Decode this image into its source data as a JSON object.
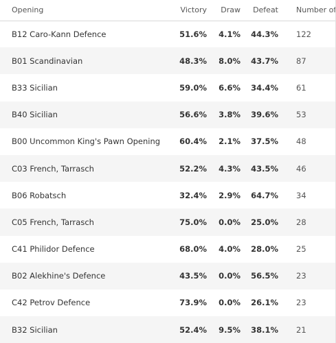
{
  "table": {
    "headers": {
      "opening": "Opening",
      "victory": "Victory",
      "draw": "Draw",
      "defeat": "Defeat",
      "number": "Number of"
    },
    "rows": [
      {
        "opening": "B12 Caro-Kann Defence",
        "victory": "51.6%",
        "draw": "4.1%",
        "defeat": "44.3%",
        "number": "122"
      },
      {
        "opening": "B01 Scandinavian",
        "victory": "48.3%",
        "draw": "8.0%",
        "defeat": "43.7%",
        "number": "87"
      },
      {
        "opening": "B33 Sicilian",
        "victory": "59.0%",
        "draw": "6.6%",
        "defeat": "34.4%",
        "number": "61"
      },
      {
        "opening": "B40 Sicilian",
        "victory": "56.6%",
        "draw": "3.8%",
        "defeat": "39.6%",
        "number": "53"
      },
      {
        "opening": "B00 Uncommon King's Pawn Opening",
        "victory": "60.4%",
        "draw": "2.1%",
        "defeat": "37.5%",
        "number": "48"
      },
      {
        "opening": "C03 French, Tarrasch",
        "victory": "52.2%",
        "draw": "4.3%",
        "defeat": "43.5%",
        "number": "46"
      },
      {
        "opening": "B06 Robatsch",
        "victory": "32.4%",
        "draw": "2.9%",
        "defeat": "64.7%",
        "number": "34"
      },
      {
        "opening": "C05 French, Tarrasch",
        "victory": "75.0%",
        "draw": "0.0%",
        "defeat": "25.0%",
        "number": "28"
      },
      {
        "opening": "C41 Philidor Defence",
        "victory": "68.0%",
        "draw": "4.0%",
        "defeat": "28.0%",
        "number": "25"
      },
      {
        "opening": "B02 Alekhine's Defence",
        "victory": "43.5%",
        "draw": "0.0%",
        "defeat": "56.5%",
        "number": "23"
      },
      {
        "opening": "C42 Petrov Defence",
        "victory": "73.9%",
        "draw": "0.0%",
        "defeat": "26.1%",
        "number": "23"
      },
      {
        "opening": "B32 Sicilian",
        "victory": "52.4%",
        "draw": "9.5%",
        "defeat": "38.1%",
        "number": "21"
      }
    ]
  }
}
